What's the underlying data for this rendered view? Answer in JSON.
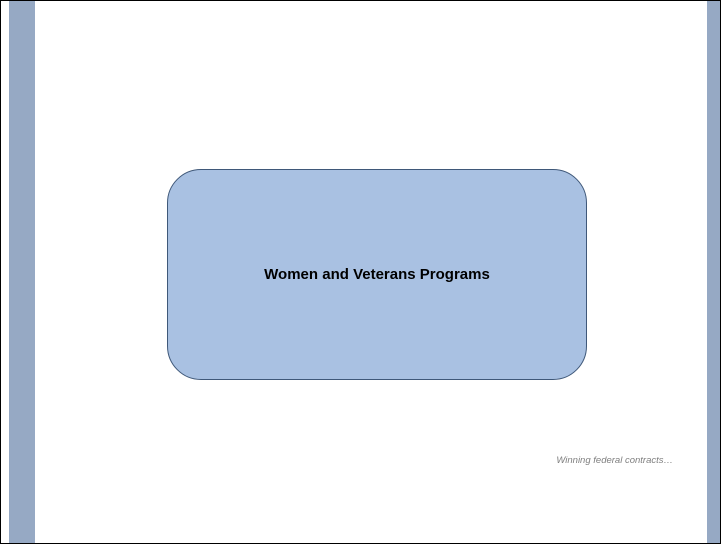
{
  "slide": {
    "title": "Women and Veterans Programs",
    "tagline": "Winning federal contracts…"
  },
  "colors": {
    "side_bars": "#96a9c4",
    "box_fill": "#a9c1e2",
    "box_border": "#3f5879",
    "tagline_text": "#7f7f7f"
  }
}
